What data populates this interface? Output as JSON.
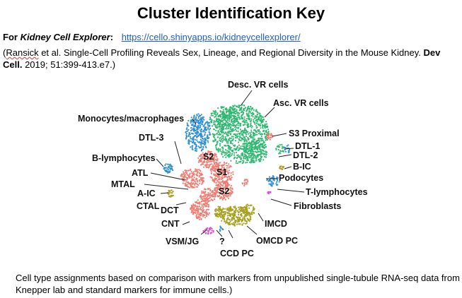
{
  "title": "Cluster Identification Key",
  "source_line": {
    "prefix": "For ",
    "app_name": "Kidney Cell Explorer",
    "colon": ":",
    "url": "https://cello.shinyapps.io/kidneycellexplorer/"
  },
  "citation": {
    "open_paren": "(",
    "first_author": "Ransick",
    "text": " et al. Single-Cell Profiling Reveals Sex, Lineage, and Regional Diversity in the Mouse Kidney. ",
    "journal": "Dev Cell.",
    "ref": " 2019; 51:399-413.e7.)"
  },
  "footer": "Cell type assignments based on comparison with markers from unpublished single-tubule RNA-seq data from Knepper lab and standard markers for immune cells.)",
  "colors": {
    "green": "#2fb870",
    "salmon": "#ef7d73",
    "blue": "#2f8fd6",
    "olive": "#a7a020",
    "magenta": "#d94fd9"
  },
  "labels": {
    "desc_vr": "Desc. VR cells",
    "asc_vr": "Asc. VR cells",
    "monocytes": "Monocytes/macrophages",
    "s3_proximal": "S3 Proximal",
    "dtl3": "DTL-3",
    "dtl1": "DTL-1",
    "dtl2": "DTL-2",
    "b_ic": "B-IC",
    "b_lymph": "B-lymphocytes",
    "podocytes": "Podocytes",
    "atl": "ATL",
    "mtal": "MTAL",
    "a_ic": "A-IC",
    "t_lymph": "T-lymphocytes",
    "ctal": "CTAL",
    "fibroblasts": "Fibroblasts",
    "dct": "DCT",
    "cnt": "CNT",
    "imcd": "IMCD",
    "omcd_pc": "OMCD PC",
    "vsm_jg": "VSM/JG",
    "unknown": "?",
    "ccd_pc": "CCD PC",
    "s2_a": "S2",
    "s1": "S1",
    "s2_b": "S2"
  }
}
